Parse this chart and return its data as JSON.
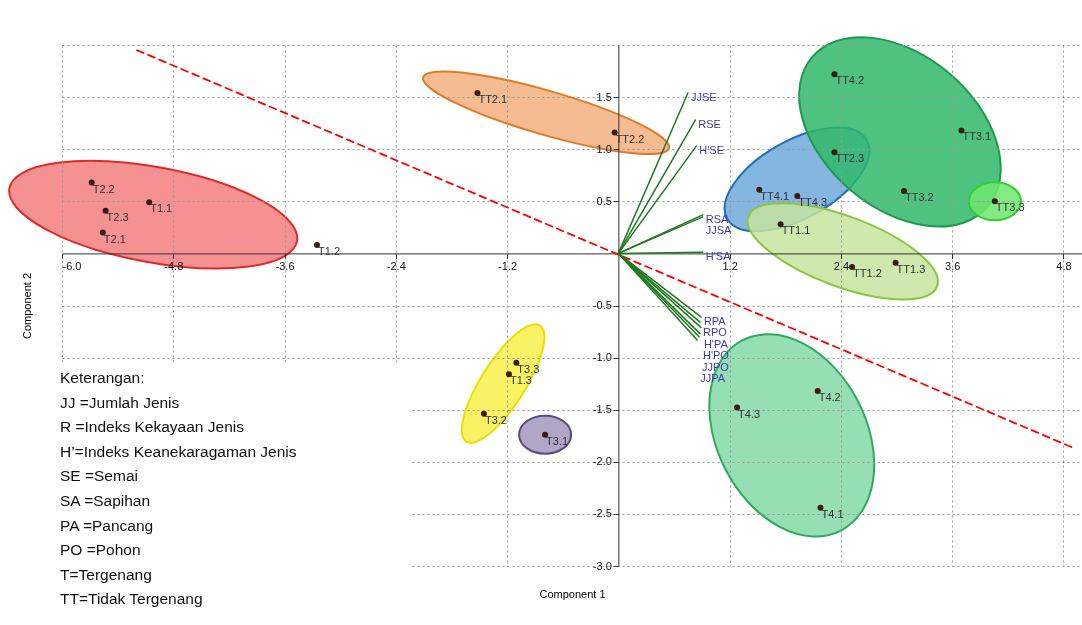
{
  "chart_data": {
    "type": "scatter",
    "xlabel": "Component 1",
    "ylabel": "Component 2",
    "xlim": [
      -6.0,
      5.0
    ],
    "ylim": [
      -3.0,
      2.0
    ],
    "xticks": [
      {
        "value": -6,
        "label": "-6.0"
      },
      -4.8,
      -3.6,
      -2.4,
      -1.2,
      1.2,
      2.4,
      3.6,
      4.8
    ],
    "yticks": [
      {
        "value": -3,
        "label": "-3.0"
      },
      -2.5,
      {
        "value": -2,
        "label": "-2.0"
      },
      -1.5,
      {
        "value": -1,
        "label": "-1.0"
      },
      -0.5,
      0.5,
      {
        "value": 1,
        "label": "1.0"
      },
      1.5
    ],
    "grid": true,
    "marker": "circle",
    "series": [
      {
        "color": "#3a1c10",
        "x": [
          -5.68,
          -5.53,
          -5.06,
          -5.56,
          -3.25
        ],
        "values": [
          0.68,
          0.41,
          0.49,
          0.2,
          0.08
        ]
      },
      {
        "color": "#3a1c10",
        "x": [
          -1.52,
          -0.04
        ],
        "values": [
          1.54,
          1.16
        ]
      },
      {
        "color": "#3a1c10",
        "x": [
          2.33,
          1.52,
          1.93
        ],
        "values": [
          0.97,
          0.61,
          0.55
        ]
      },
      {
        "color": "#3a1c10",
        "x": [
          2.33,
          3.7,
          3.08
        ],
        "values": [
          1.72,
          1.18,
          0.6
        ]
      },
      {
        "color": "#3a1c10",
        "x": [
          4.06
        ],
        "values": [
          0.5
        ]
      },
      {
        "color": "#3a1c10",
        "x": [
          1.75,
          2.52,
          2.99
        ],
        "values": [
          0.28,
          -0.13,
          -0.09
        ]
      },
      {
        "color": "#3a1c10",
        "x": [
          -1.1,
          -1.18,
          -1.45
        ],
        "values": [
          -1.05,
          -1.16,
          -1.54
        ]
      },
      {
        "color": "#3a1c10",
        "x": [
          -0.79
        ],
        "values": [
          -1.74
        ]
      },
      {
        "color": "#3a1c10",
        "x": [
          2.15,
          1.28,
          2.18
        ],
        "values": [
          -1.32,
          -1.48,
          -2.44
        ]
      },
      {
        "type": "line",
        "marker": "none",
        "line_style": "dashed",
        "color": "#ff0000",
        "x": [
          -5.19,
          4.89
        ],
        "values": [
          1.95,
          -1.86
        ]
      },
      {
        "type": "line",
        "marker": "none",
        "name": "JJSE",
        "color": "#1f7a1f",
        "x": [
          0,
          0.75
        ],
        "values": [
          0,
          1.54
        ]
      },
      {
        "type": "line",
        "marker": "none",
        "name": "RSE",
        "color": "#1f7a1f",
        "x": [
          0,
          0.83
        ],
        "values": [
          0,
          1.28
        ]
      },
      {
        "type": "line",
        "marker": "none",
        "name": "H'SE",
        "color": "#1f7a1f",
        "x": [
          0,
          0.84
        ],
        "values": [
          0,
          1.03
        ]
      },
      {
        "type": "line",
        "marker": "none",
        "name": "RSA",
        "color": "#1f7a1f",
        "x": [
          0,
          0.91
        ],
        "values": [
          0,
          0.37
        ]
      },
      {
        "type": "line",
        "marker": "none",
        "name": "JJSA",
        "color": "#1f7a1f",
        "x": [
          0,
          0.91
        ],
        "values": [
          0,
          0.35
        ]
      },
      {
        "type": "line",
        "marker": "none",
        "name": "H'SA",
        "color": "#1f7a1f",
        "x": [
          0,
          0.91
        ],
        "values": [
          0,
          0.01
        ]
      },
      {
        "type": "line",
        "marker": "none",
        "name": "RPA",
        "color": "#1f7a1f",
        "x": [
          0,
          0.89
        ],
        "values": [
          0,
          -0.61
        ]
      },
      {
        "type": "line",
        "marker": "none",
        "name": "RPO",
        "color": "#1f7a1f",
        "x": [
          0,
          0.88
        ],
        "values": [
          0,
          -0.66
        ]
      },
      {
        "type": "line",
        "marker": "none",
        "name": "H'PA",
        "color": "#1f7a1f",
        "x": [
          0,
          0.89
        ],
        "values": [
          0,
          -0.71
        ]
      },
      {
        "type": "line",
        "marker": "none",
        "name": "H'PO",
        "color": "#1f7a1f",
        "x": [
          0,
          0.88
        ],
        "values": [
          0,
          -0.77
        ]
      },
      {
        "type": "line",
        "marker": "none",
        "name": "JJPO",
        "color": "#1f7a1f",
        "x": [
          0,
          0.87
        ],
        "values": [
          0,
          -0.8
        ]
      },
      {
        "type": "line",
        "marker": "none",
        "name": "JJPA",
        "color": "#1f7a1f",
        "x": [
          0,
          0.85
        ],
        "values": [
          0,
          -0.83
        ]
      }
    ],
    "annotations": [
      {
        "text": "T2.2",
        "x": -5.68,
        "y": 0.68
      },
      {
        "text": "T2.3",
        "x": -5.53,
        "y": 0.41
      },
      {
        "text": "T1.1",
        "x": -5.06,
        "y": 0.49
      },
      {
        "text": "T2.1",
        "x": -5.56,
        "y": 0.2
      },
      {
        "text": "T1.2",
        "x": -3.25,
        "y": 0.08
      },
      {
        "text": "TT2.1",
        "x": -1.52,
        "y": 1.54
      },
      {
        "text": "TT2.2",
        "x": -0.04,
        "y": 1.16
      },
      {
        "text": "TT2.3",
        "x": 2.33,
        "y": 0.97
      },
      {
        "text": "TT4.1",
        "x": 1.52,
        "y": 0.61
      },
      {
        "text": "TT4.3",
        "x": 1.93,
        "y": 0.55
      },
      {
        "text": "TT4.2",
        "x": 2.33,
        "y": 1.72
      },
      {
        "text": "TT3.1",
        "x": 3.7,
        "y": 1.18
      },
      {
        "text": "TT3.2",
        "x": 3.08,
        "y": 0.6
      },
      {
        "text": "TT3.3",
        "x": 4.06,
        "y": 0.5
      },
      {
        "text": "TT1.1",
        "x": 1.75,
        "y": 0.28
      },
      {
        "text": "TT1.2",
        "x": 2.52,
        "y": -0.13
      },
      {
        "text": "TT1.3",
        "x": 2.99,
        "y": -0.09
      },
      {
        "text": "T3.3",
        "x": -1.1,
        "y": -1.05
      },
      {
        "text": "T1.3",
        "x": -1.18,
        "y": -1.16
      },
      {
        "text": "T3.2",
        "x": -1.45,
        "y": -1.54
      },
      {
        "text": "T3.1",
        "x": -0.79,
        "y": -1.74
      },
      {
        "text": "T4.2",
        "x": 2.15,
        "y": -1.32
      },
      {
        "text": "T4.3",
        "x": 1.28,
        "y": -1.48
      },
      {
        "text": "T4.1",
        "x": 2.18,
        "y": -2.44
      },
      "Keterangan:",
      "JJ =Jumlah Jenis",
      "R =Indeks Kekayaan Jenis",
      "H’=Indeks Keanekaragaman Jenis",
      "SE =Semai",
      "SA =Sapihan",
      "PA =Pancang",
      "PO =Pohon",
      "T=Tergenang",
      "TT=Tidak Tergenang"
    ]
  }
}
